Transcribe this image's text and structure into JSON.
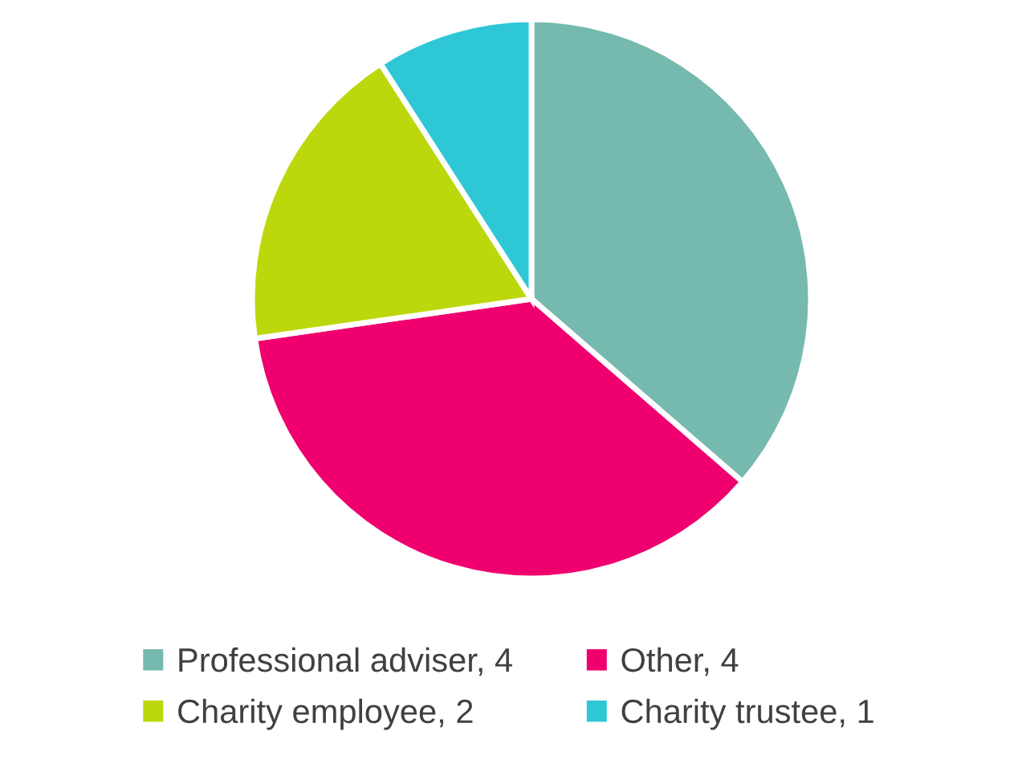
{
  "chart_data": {
    "type": "pie",
    "categories": [
      "Professional adviser, 4",
      "Other, 4",
      "Charity employee, 2",
      "Charity trustee, 1"
    ],
    "values": [
      4,
      4,
      2,
      1
    ],
    "colors": [
      "#76b9ae",
      "#f0006e",
      "#bcd80c",
      "#2ec7d6"
    ],
    "legend": "bottom"
  }
}
